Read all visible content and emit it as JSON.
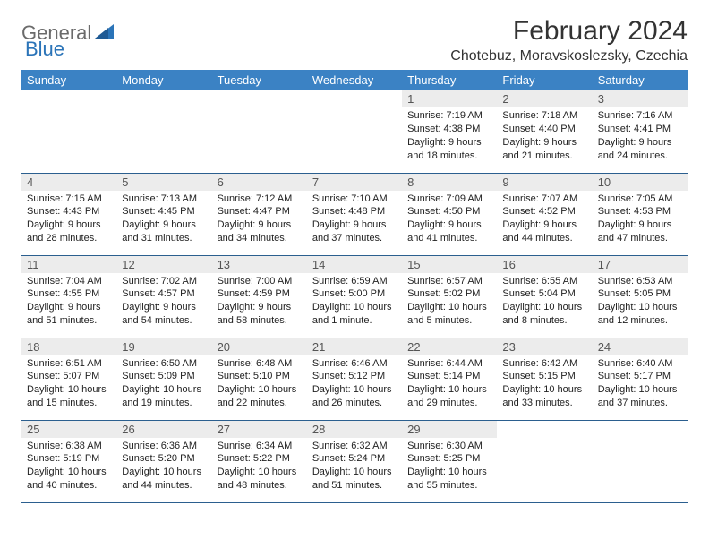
{
  "brand": {
    "text1": "General",
    "text2": "Blue"
  },
  "title": "February 2024",
  "location": "Chotebuz, Moravskoslezsky, Czechia",
  "colors": {
    "header_bg": "#3b82c4",
    "header_text": "#ffffff",
    "daynum_bg": "#ececec",
    "row_border": "#2b5f8f",
    "brand_gray": "#6b6b6b",
    "brand_blue": "#2b74b8"
  },
  "daysOfWeek": [
    "Sunday",
    "Monday",
    "Tuesday",
    "Wednesday",
    "Thursday",
    "Friday",
    "Saturday"
  ],
  "firstDayIndex": 4,
  "days": [
    {
      "n": 1,
      "sr": "7:19 AM",
      "ss": "4:38 PM",
      "dl": "9 hours and 18 minutes."
    },
    {
      "n": 2,
      "sr": "7:18 AM",
      "ss": "4:40 PM",
      "dl": "9 hours and 21 minutes."
    },
    {
      "n": 3,
      "sr": "7:16 AM",
      "ss": "4:41 PM",
      "dl": "9 hours and 24 minutes."
    },
    {
      "n": 4,
      "sr": "7:15 AM",
      "ss": "4:43 PM",
      "dl": "9 hours and 28 minutes."
    },
    {
      "n": 5,
      "sr": "7:13 AM",
      "ss": "4:45 PM",
      "dl": "9 hours and 31 minutes."
    },
    {
      "n": 6,
      "sr": "7:12 AM",
      "ss": "4:47 PM",
      "dl": "9 hours and 34 minutes."
    },
    {
      "n": 7,
      "sr": "7:10 AM",
      "ss": "4:48 PM",
      "dl": "9 hours and 37 minutes."
    },
    {
      "n": 8,
      "sr": "7:09 AM",
      "ss": "4:50 PM",
      "dl": "9 hours and 41 minutes."
    },
    {
      "n": 9,
      "sr": "7:07 AM",
      "ss": "4:52 PM",
      "dl": "9 hours and 44 minutes."
    },
    {
      "n": 10,
      "sr": "7:05 AM",
      "ss": "4:53 PM",
      "dl": "9 hours and 47 minutes."
    },
    {
      "n": 11,
      "sr": "7:04 AM",
      "ss": "4:55 PM",
      "dl": "9 hours and 51 minutes."
    },
    {
      "n": 12,
      "sr": "7:02 AM",
      "ss": "4:57 PM",
      "dl": "9 hours and 54 minutes."
    },
    {
      "n": 13,
      "sr": "7:00 AM",
      "ss": "4:59 PM",
      "dl": "9 hours and 58 minutes."
    },
    {
      "n": 14,
      "sr": "6:59 AM",
      "ss": "5:00 PM",
      "dl": "10 hours and 1 minute."
    },
    {
      "n": 15,
      "sr": "6:57 AM",
      "ss": "5:02 PM",
      "dl": "10 hours and 5 minutes."
    },
    {
      "n": 16,
      "sr": "6:55 AM",
      "ss": "5:04 PM",
      "dl": "10 hours and 8 minutes."
    },
    {
      "n": 17,
      "sr": "6:53 AM",
      "ss": "5:05 PM",
      "dl": "10 hours and 12 minutes."
    },
    {
      "n": 18,
      "sr": "6:51 AM",
      "ss": "5:07 PM",
      "dl": "10 hours and 15 minutes."
    },
    {
      "n": 19,
      "sr": "6:50 AM",
      "ss": "5:09 PM",
      "dl": "10 hours and 19 minutes."
    },
    {
      "n": 20,
      "sr": "6:48 AM",
      "ss": "5:10 PM",
      "dl": "10 hours and 22 minutes."
    },
    {
      "n": 21,
      "sr": "6:46 AM",
      "ss": "5:12 PM",
      "dl": "10 hours and 26 minutes."
    },
    {
      "n": 22,
      "sr": "6:44 AM",
      "ss": "5:14 PM",
      "dl": "10 hours and 29 minutes."
    },
    {
      "n": 23,
      "sr": "6:42 AM",
      "ss": "5:15 PM",
      "dl": "10 hours and 33 minutes."
    },
    {
      "n": 24,
      "sr": "6:40 AM",
      "ss": "5:17 PM",
      "dl": "10 hours and 37 minutes."
    },
    {
      "n": 25,
      "sr": "6:38 AM",
      "ss": "5:19 PM",
      "dl": "10 hours and 40 minutes."
    },
    {
      "n": 26,
      "sr": "6:36 AM",
      "ss": "5:20 PM",
      "dl": "10 hours and 44 minutes."
    },
    {
      "n": 27,
      "sr": "6:34 AM",
      "ss": "5:22 PM",
      "dl": "10 hours and 48 minutes."
    },
    {
      "n": 28,
      "sr": "6:32 AM",
      "ss": "5:24 PM",
      "dl": "10 hours and 51 minutes."
    },
    {
      "n": 29,
      "sr": "6:30 AM",
      "ss": "5:25 PM",
      "dl": "10 hours and 55 minutes."
    }
  ]
}
